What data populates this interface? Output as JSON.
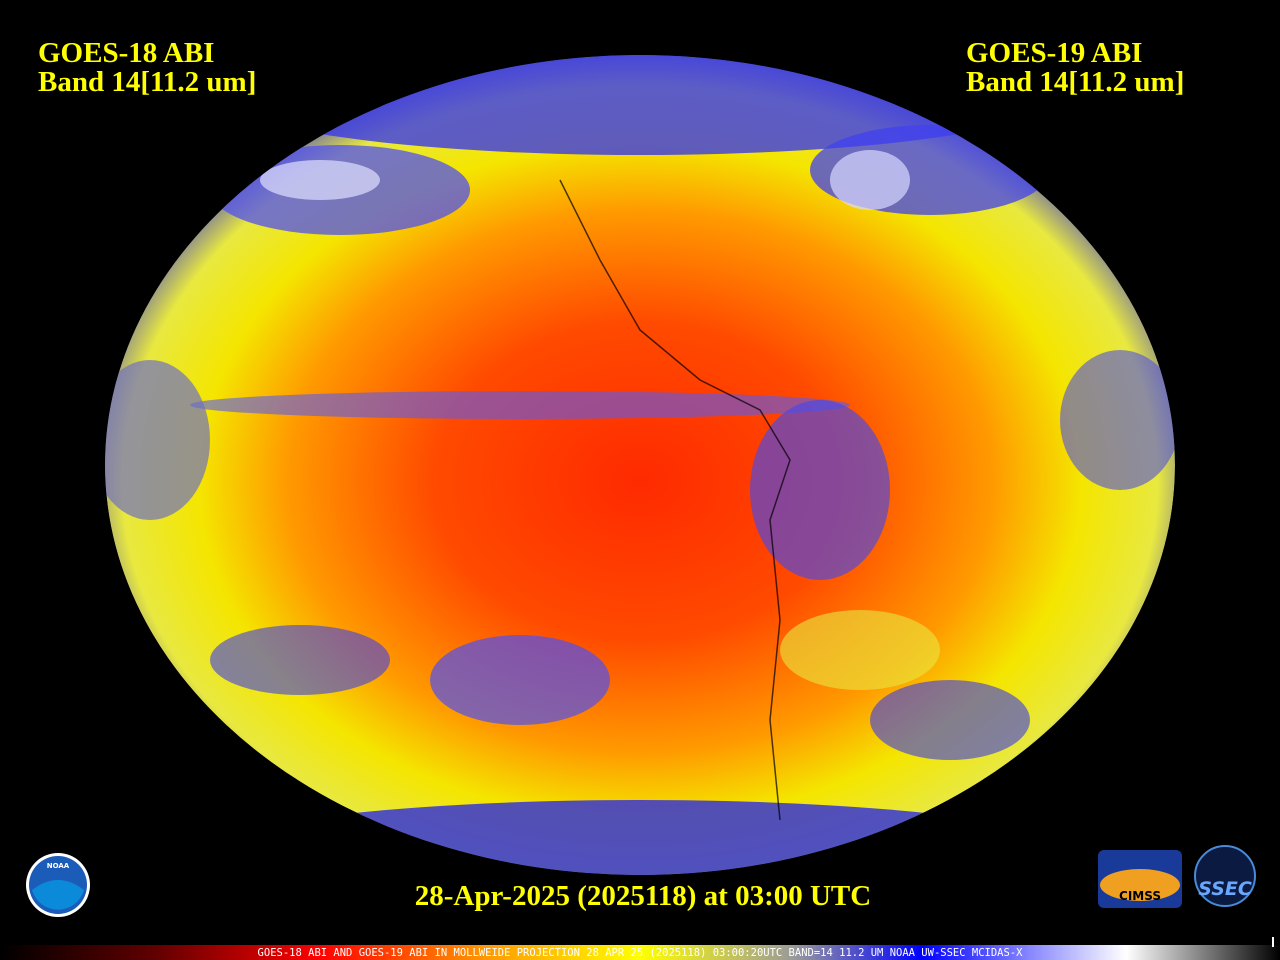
{
  "header": {
    "left": {
      "title": "GOES-18 ABI",
      "band": "Band 14[11.2 um]"
    },
    "right": {
      "title": "GOES-19 ABI",
      "band": "Band 14[11.2 um]"
    }
  },
  "timestamp": "28-Apr-2025 (2025118) at 03:00 UTC",
  "footer": "GOES-18 ABI AND GOES-19 ABI IN MOLLWEIDE PROJECTION 28 APR 25 (2025118) 03:00:20UTC BAND=14 11.2 UM NOAA UW-SSEC MCIDAS-X",
  "logos": {
    "noaa": "NOAA",
    "cimss": "CIMSS",
    "ssec": "SSEC"
  }
}
